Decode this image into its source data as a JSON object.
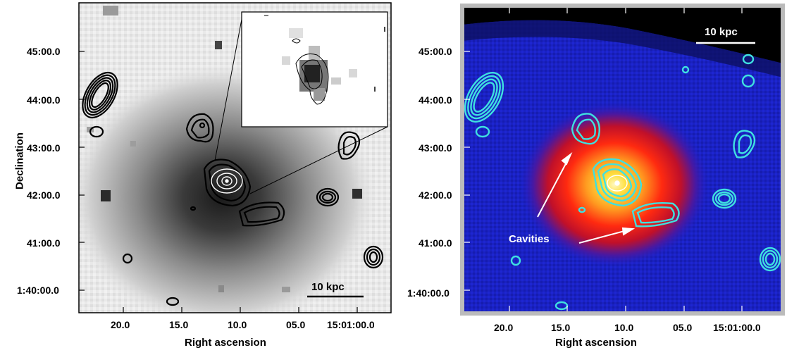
{
  "left_panel": {
    "ylabel": "Declination",
    "xlabel": "Right ascension",
    "yticks": [
      "45:00.0",
      "44:00.0",
      "43:00.0",
      "42:00.0",
      "41:00.0",
      "1:40:00.0"
    ],
    "xticks": [
      "20.0",
      "15.0",
      "10.0",
      "05.0",
      "15:01:00.0"
    ],
    "scalebar": "10 kpc"
  },
  "right_panel": {
    "xlabel": "Right ascension",
    "yticks": [
      "45:00.0",
      "44:00.0",
      "43:00.0",
      "42:00.0",
      "41:00.0",
      "1:40:00.0"
    ],
    "xticks": [
      "20.0",
      "15.0",
      "10.0",
      "05.0",
      "15:01:00.0"
    ],
    "scalebar": "10 kpc",
    "annotation": "Cavities"
  },
  "colors": {
    "contour_left": "#000000",
    "contour_right": "#3fe0e0",
    "xray_core": "#ffe040",
    "xray_mid": "#ff2a10",
    "xray_bg": "#1a20c8"
  }
}
